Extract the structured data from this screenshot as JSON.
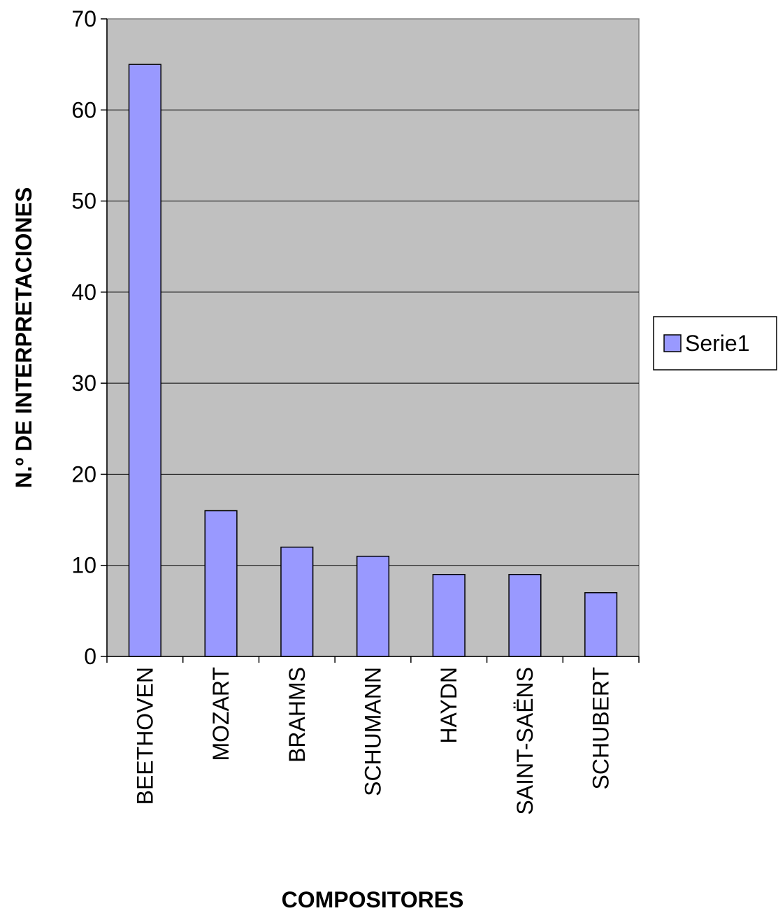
{
  "chart_data": {
    "type": "bar",
    "title": "",
    "xlabel": "COMPOSITORES",
    "ylabel": "N.º DE INTERPRETACIONES",
    "categories": [
      "BEETHOVEN",
      "MOZART",
      "BRAHMS",
      "SCHUMANN",
      "HAYDN",
      "SAINT-SAËNS",
      "SCHUBERT"
    ],
    "series": [
      {
        "name": "Serie1",
        "values": [
          65,
          16,
          12,
          11,
          9,
          9,
          7
        ],
        "color": "#9999ff"
      }
    ],
    "ylim": [
      0,
      70
    ],
    "yticks": [
      "0",
      "10",
      "20",
      "30",
      "40",
      "50",
      "60",
      "70"
    ],
    "grid": true,
    "plot_background": "#c0c0c0",
    "legend_position": "right"
  }
}
